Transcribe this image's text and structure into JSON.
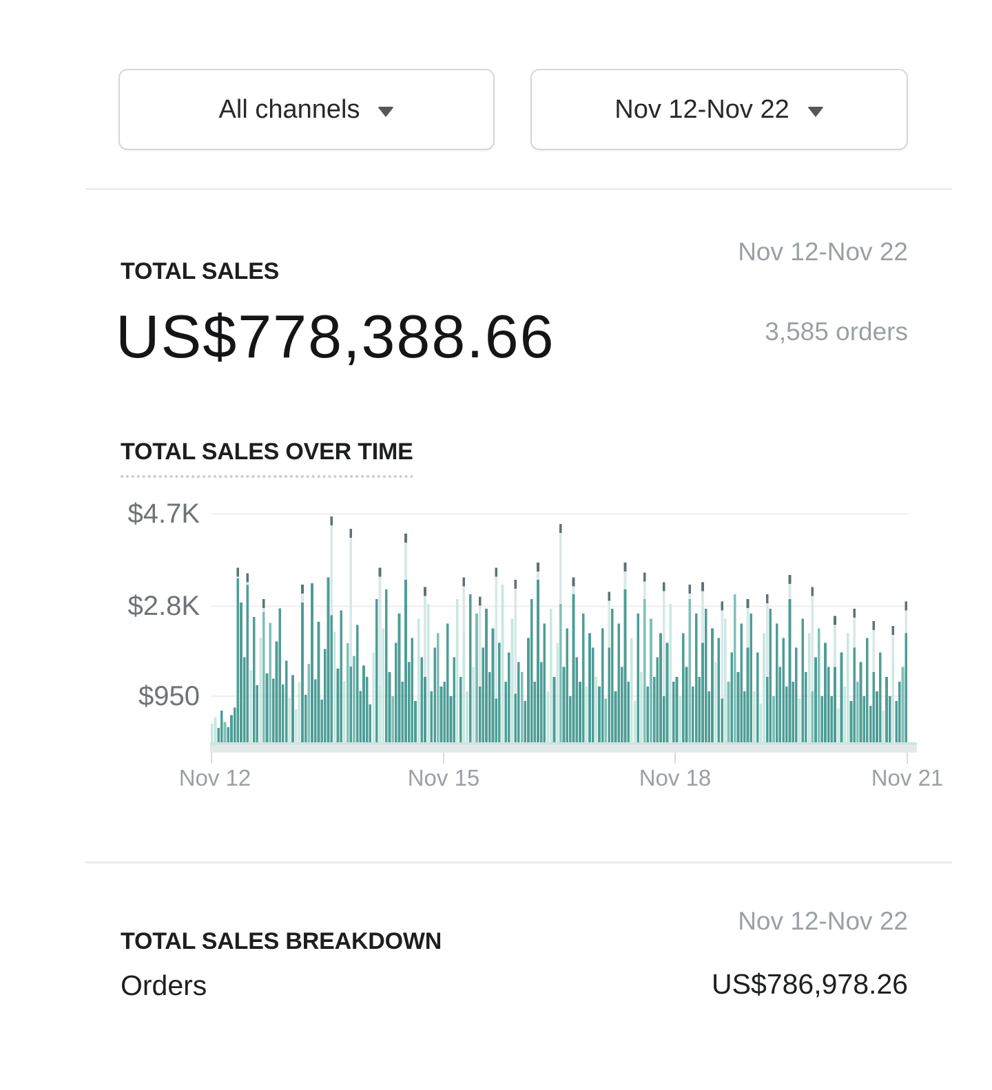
{
  "filters": {
    "channel": {
      "label": "All channels"
    },
    "date_range": {
      "label": "Nov 12-Nov 22"
    }
  },
  "total_sales": {
    "title": "TOTAL SALES",
    "date_range": "Nov 12-Nov 22",
    "amount": "US$778,388.66",
    "orders": "3,585 orders"
  },
  "chart_data": {
    "type": "bar",
    "title": "TOTAL SALES OVER TIME",
    "unit": "USD",
    "grid": true,
    "legend": "none",
    "x_ticks": [
      "Nov 12",
      "Nov 15",
      "Nov 18",
      "Nov 21"
    ],
    "y_ticks": [
      {
        "label": "$4.7K",
        "value": 4700
      },
      {
        "label": "$2.8K",
        "value": 2800
      },
      {
        "label": "$950",
        "value": 950
      }
    ],
    "ylim": [
      0,
      5150
    ],
    "values": [
      380,
      520,
      300,
      650,
      420,
      310,
      560,
      720,
      3380,
      2880,
      1750,
      3240,
      1480,
      2580,
      1180,
      2160,
      2680,
      1420,
      2460,
      1310,
      2080,
      2760,
      1190,
      1680,
      920,
      1380,
      680,
      1240,
      2880,
      980,
      1620,
      3280,
      1300,
      2480,
      880,
      1920,
      3400,
      2620,
      2280,
      1520,
      2720,
      1260,
      2040,
      1560,
      1780,
      2420,
      1060,
      1580,
      1350,
      780,
      1850,
      2950,
      1150,
      2350,
      3150,
      1450,
      950,
      2050,
      2650,
      1250,
      3350,
      1650,
      2150,
      850,
      2550,
      1750,
      1350,
      2850,
      1050,
      1950,
      2250,
      1150,
      1250,
      2450,
      950,
      1750,
      2950,
      1350,
      2250,
      1050,
      3050,
      1550,
      2650,
      1150,
      1950,
      2750,
      1450,
      2350,
      900,
      2050,
      3250,
      1250,
      1850,
      2550,
      1000,
      1650,
      1450,
      850,
      2150,
      2950,
      1250,
      3350,
      1650,
      2450,
      1050,
      2750,
      1350,
      2050,
      2850,
      1550,
      2350,
      950,
      3050,
      1750,
      1250,
      2650,
      1150,
      2250,
      1950,
      1350,
      1150,
      2350,
      900,
      1950,
      2750,
      1050,
      2450,
      1550,
      3150,
      1250,
      2150,
      850,
      2650,
      1450,
      2950,
      1150,
      2550,
      1350,
      1750,
      2250,
      950,
      2050,
      2850,
      1250,
      1350,
      950,
      2250,
      1550,
      2950,
      1150,
      2650,
      1350,
      2050,
      2750,
      1050,
      2350,
      1650,
      2150,
      900,
      2550,
      1250,
      1850,
      3050,
      1450,
      2450,
      1050,
      1950,
      2650,
      1050,
      1850,
      800,
      2250,
      1350,
      2750,
      950,
      2450,
      1550,
      2150,
      1150,
      2950,
      1250,
      1950,
      900,
      2550,
      1450,
      2250,
      1050,
      1750,
      2350,
      950,
      2050,
      1550,
      950,
      1550,
      700,
      1850,
      1150,
      2250,
      850,
      1950,
      1250,
      1650,
      950,
      2150,
      750,
      1450,
      1050,
      1850,
      650,
      1350,
      950,
      1750,
      850,
      1250,
      1550,
      2250
    ],
    "peaks": {
      "8": 3600,
      "11": 3480,
      "16": 2950,
      "28": 3250,
      "37": 4650,
      "43": 4400,
      "52": 3600,
      "60": 4300,
      "66": 3200,
      "78": 3400,
      "83": 3000,
      "88": 3600,
      "94": 3350,
      "101": 3700,
      "108": 4500,
      "112": 3400,
      "123": 3100,
      "128": 3700,
      "134": 3500,
      "140": 3300,
      "148": 3250,
      "152": 3300,
      "158": 2900,
      "166": 2950,
      "172": 3050,
      "179": 3450,
      "186": 3200,
      "193": 2600,
      "199": 2750,
      "205": 2500,
      "211": 2400,
      "215": 2900
    },
    "colors": {
      "bar": "#4e9d96",
      "bar_medium": "#7fbfb8",
      "bar_light": "#c7e8e2",
      "peak_shaft": "#d7e9e7",
      "peak_cap": "#5d7274",
      "grid": "#ededee",
      "axis_strip": "#e3e8e8"
    }
  },
  "breakdown": {
    "title": "TOTAL SALES BREAKDOWN",
    "date_range": "Nov 12-Nov 22",
    "rows": [
      {
        "label": "Orders",
        "value": "US$786,978.26"
      }
    ]
  }
}
